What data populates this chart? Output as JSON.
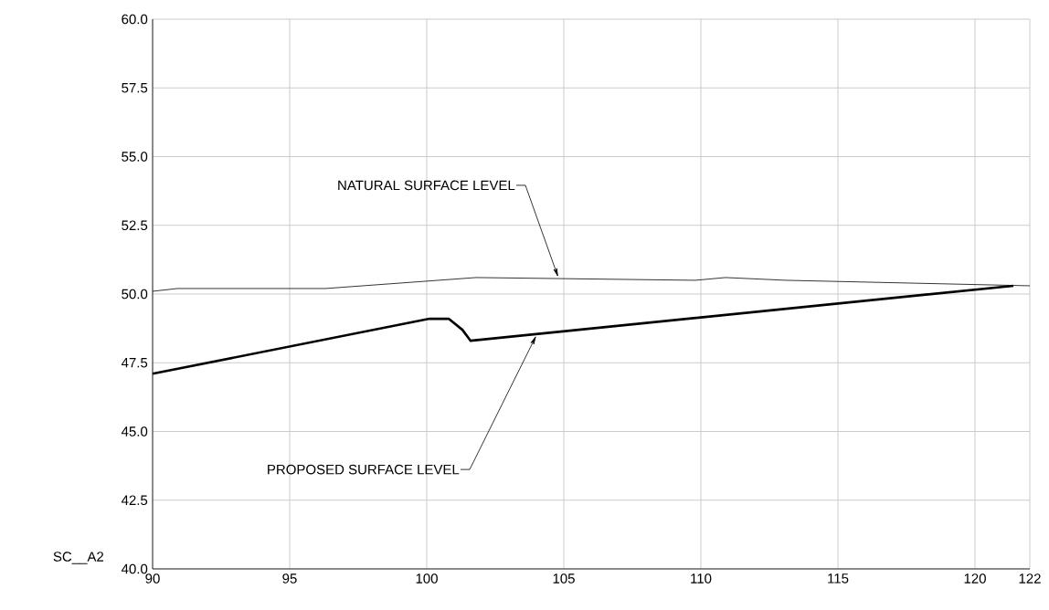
{
  "chart_data": {
    "type": "line",
    "series": [
      {
        "name": null,
        "color": "#000000",
        "x": [
          90,
          90.9,
          96.3,
          101.8,
          109.8,
          110.9,
          113.1,
          122
        ],
        "values": [
          50.1,
          50.2,
          50.2,
          50.6,
          50.5,
          50.6,
          50.5,
          50.3
        ]
      },
      {
        "name": null,
        "color": "#000000",
        "x": [
          90,
          100.1,
          100.8,
          101.3,
          101.6,
          121.4
        ],
        "values": [
          47.1,
          49.1,
          49.1,
          48.7,
          48.3,
          50.3
        ]
      }
    ],
    "xlim": [
      90,
      122
    ],
    "xticks": [
      90,
      95,
      100,
      105,
      110,
      115,
      120,
      122
    ],
    "ylim": [
      40,
      60
    ],
    "yticks": [
      {
        "value": 40,
        "label": "40.0"
      },
      {
        "value": 42.5,
        "label": "42.5"
      },
      {
        "value": 45,
        "label": "45.0"
      },
      {
        "value": 47.5,
        "label": "47.5"
      },
      {
        "value": 50,
        "label": "50.0"
      },
      {
        "value": 52.5,
        "label": "52.5"
      },
      {
        "value": 55,
        "label": "55.0"
      },
      {
        "value": 57.5,
        "label": "57.5"
      },
      {
        "value": 60,
        "label": "60.0"
      }
    ],
    "grid": true,
    "marker": "none",
    "line_style": "solid",
    "annotations": [
      {
        "text": "NATURAL SURFACE LEVEL",
        "x": 104.8,
        "y": 50.6
      },
      {
        "text": "PROPOSED SURFACE LEVEL",
        "x": 104,
        "y": 48.5
      },
      "SC__A2"
    ]
  }
}
